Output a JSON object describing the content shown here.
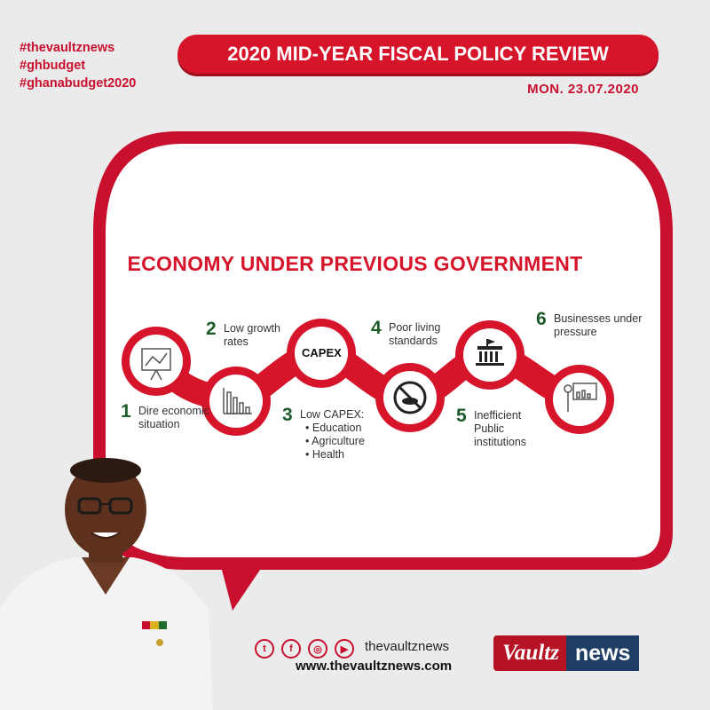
{
  "hashtags": [
    "#thevaultznews",
    "#ghbudget",
    "#ghanabudget2020"
  ],
  "header": {
    "title": "2020 MID-YEAR FISCAL POLICY REVIEW",
    "date": "MON. 23.07.2020"
  },
  "headline": "ECONOMY UNDER PREVIOUS GOVERNMENT",
  "steps": [
    {
      "num": "1",
      "text": "Dire economic situation",
      "icon": "presentation-chart-icon"
    },
    {
      "num": "2",
      "text": "Low growth rates",
      "icon": "declining-bar-chart-icon"
    },
    {
      "num": "3",
      "text": "Low CAPEX:",
      "bullets": [
        "Education",
        "Agriculture",
        "Health"
      ],
      "icon_label": "CAPEX"
    },
    {
      "num": "4",
      "text": "Poor living standards",
      "icon": "no-food-icon"
    },
    {
      "num": "5",
      "text": "Inefficient Public institutions",
      "icon": "government-building-icon"
    },
    {
      "num": "6",
      "text": "Businesses under pressure",
      "icon": "presenter-chart-icon"
    }
  ],
  "footer": {
    "handle": "thevaultznews",
    "website": "www.thevaultznews.com"
  },
  "logo": {
    "left": "Vaultz",
    "right": "news"
  },
  "colors": {
    "brand_red": "#d6142a",
    "step_green": "#1e5b2a",
    "logo_blue": "#1f3e66"
  }
}
